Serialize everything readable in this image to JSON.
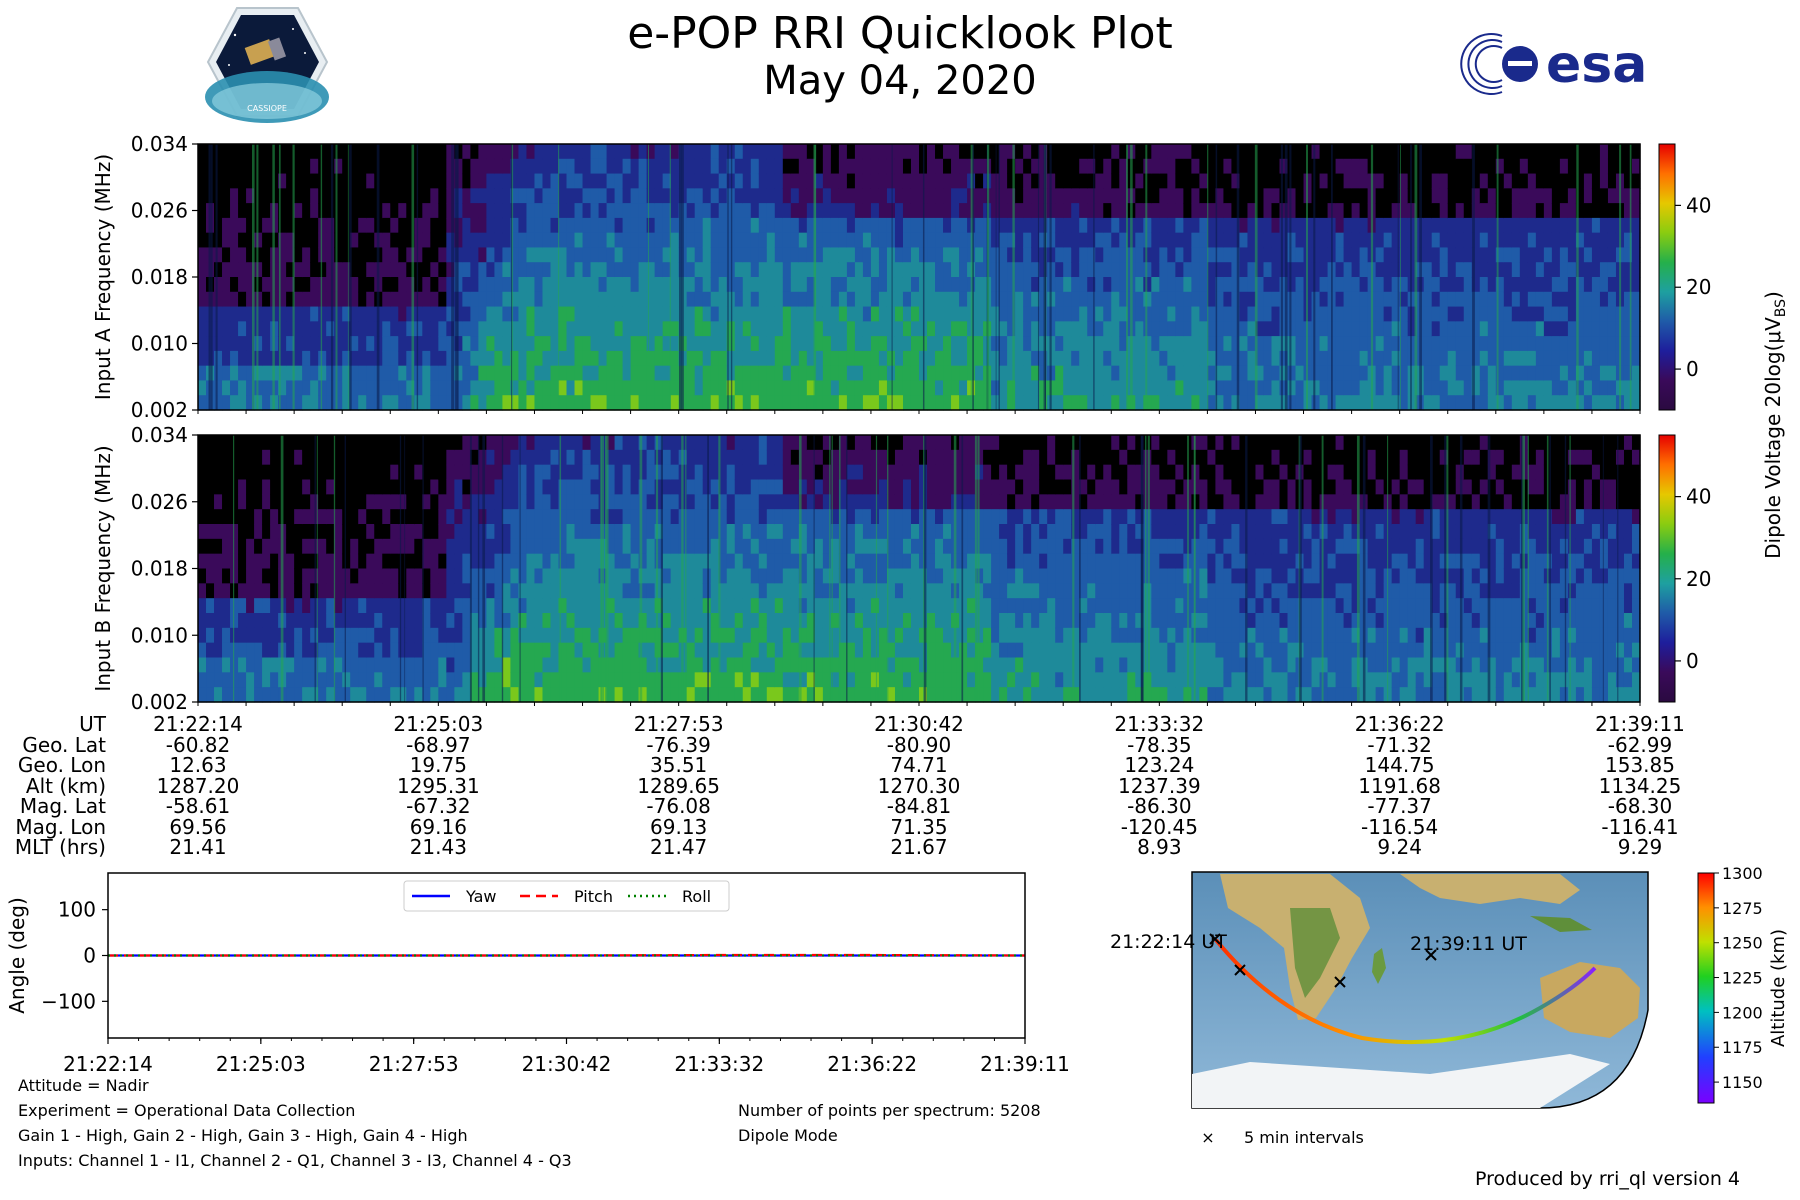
{
  "header": {
    "title": "e-POP RRI Quicklook Plot",
    "date": "May 04, 2020",
    "logo_left_text": "CASSIOPE",
    "logo_right_text": "esa"
  },
  "spectrogram": {
    "panel_a_ylabel": "Input A Frequency (MHz)",
    "panel_b_ylabel": "Input B Frequency (MHz)",
    "yticks": [
      "0.002",
      "0.010",
      "0.018",
      "0.026",
      "0.034"
    ],
    "ylim": [
      0.002,
      0.034
    ],
    "colorbar_label": "Dipole Voltage 20log(μV",
    "colorbar_label_sub": "BS",
    "colorbar_label_end": ")",
    "colorbar_ticks": [
      "0",
      "20",
      "40"
    ],
    "colorbar_range": [
      -10,
      55
    ],
    "colors": [
      "#000000",
      "#3a0a5a",
      "#1e2a8c",
      "#1f5ba8",
      "#1e8a9a",
      "#25a850",
      "#7ac81c",
      "#e6c800",
      "#ff6a00",
      "#e60000"
    ]
  },
  "ephemeris": {
    "labels": [
      "UT",
      "Geo. Lat",
      "Geo. Lon",
      "Alt (km)",
      "Mag. Lat",
      "Mag. Lon",
      "MLT (hrs)"
    ],
    "columns": [
      [
        "21:22:14",
        "-60.82",
        "12.63",
        "1287.20",
        "-58.61",
        "69.56",
        "21.41"
      ],
      [
        "21:25:03",
        "-68.97",
        "19.75",
        "1295.31",
        "-67.32",
        "69.16",
        "21.43"
      ],
      [
        "21:27:53",
        "-76.39",
        "35.51",
        "1289.65",
        "-76.08",
        "69.13",
        "21.47"
      ],
      [
        "21:30:42",
        "-80.90",
        "74.71",
        "1270.30",
        "-84.81",
        "71.35",
        "21.67"
      ],
      [
        "21:33:32",
        "-78.35",
        "123.24",
        "1237.39",
        "-86.30",
        "-120.45",
        "8.93"
      ],
      [
        "21:36:22",
        "-71.32",
        "144.75",
        "1191.68",
        "-77.37",
        "-116.54",
        "9.24"
      ],
      [
        "21:39:11",
        "-62.99",
        "153.85",
        "1134.25",
        "-68.30",
        "-116.41",
        "9.29"
      ]
    ]
  },
  "chart_data": {
    "type": "line",
    "title": "",
    "xlabel": "",
    "ylabel": "Angle (deg)",
    "x": [
      "21:22:14",
      "21:25:03",
      "21:27:53",
      "21:30:42",
      "21:33:32",
      "21:36:22",
      "21:39:11"
    ],
    "ylim": [
      -180,
      180
    ],
    "yticks": [
      100,
      0,
      -100
    ],
    "ytick_labels": [
      "100",
      "0",
      "−100"
    ],
    "legend_position": "top-center",
    "series": [
      {
        "name": "Yaw",
        "color": "#0000ff",
        "style": "solid",
        "values": [
          0,
          0,
          0,
          0,
          0,
          0,
          0
        ]
      },
      {
        "name": "Pitch",
        "color": "#ff0000",
        "style": "dashed",
        "values": [
          0,
          0,
          0,
          0,
          1,
          1,
          0
        ]
      },
      {
        "name": "Roll",
        "color": "#008000",
        "style": "dotted",
        "values": [
          0,
          0,
          0,
          0,
          0,
          0,
          0
        ]
      }
    ]
  },
  "experiment": {
    "attitude": "Attitude = Nadir",
    "experiment": "Experiment = Operational Data Collection",
    "gain": "Gain 1 - High, Gain 2 - High, Gain 3 - High, Gain 4 - High",
    "inputs": "Inputs: Channel 1 - I1, Channel 2 - Q1, Channel 3 - I3, Channel 4 - Q3",
    "points": "Number of points per spectrum: 5208",
    "mode": "Dipole Mode"
  },
  "map": {
    "start_label": "21:22:14 UT",
    "end_label": "21:39:11 UT",
    "legend_marker": "×",
    "legend_label": "5 min intervals",
    "colorbar_label": "Altitude (km)",
    "colorbar_ticks": [
      "1150",
      "1175",
      "1200",
      "1225",
      "1250",
      "1275",
      "1300"
    ]
  },
  "footer": {
    "produced_by": "Produced by rri_ql version 4"
  }
}
